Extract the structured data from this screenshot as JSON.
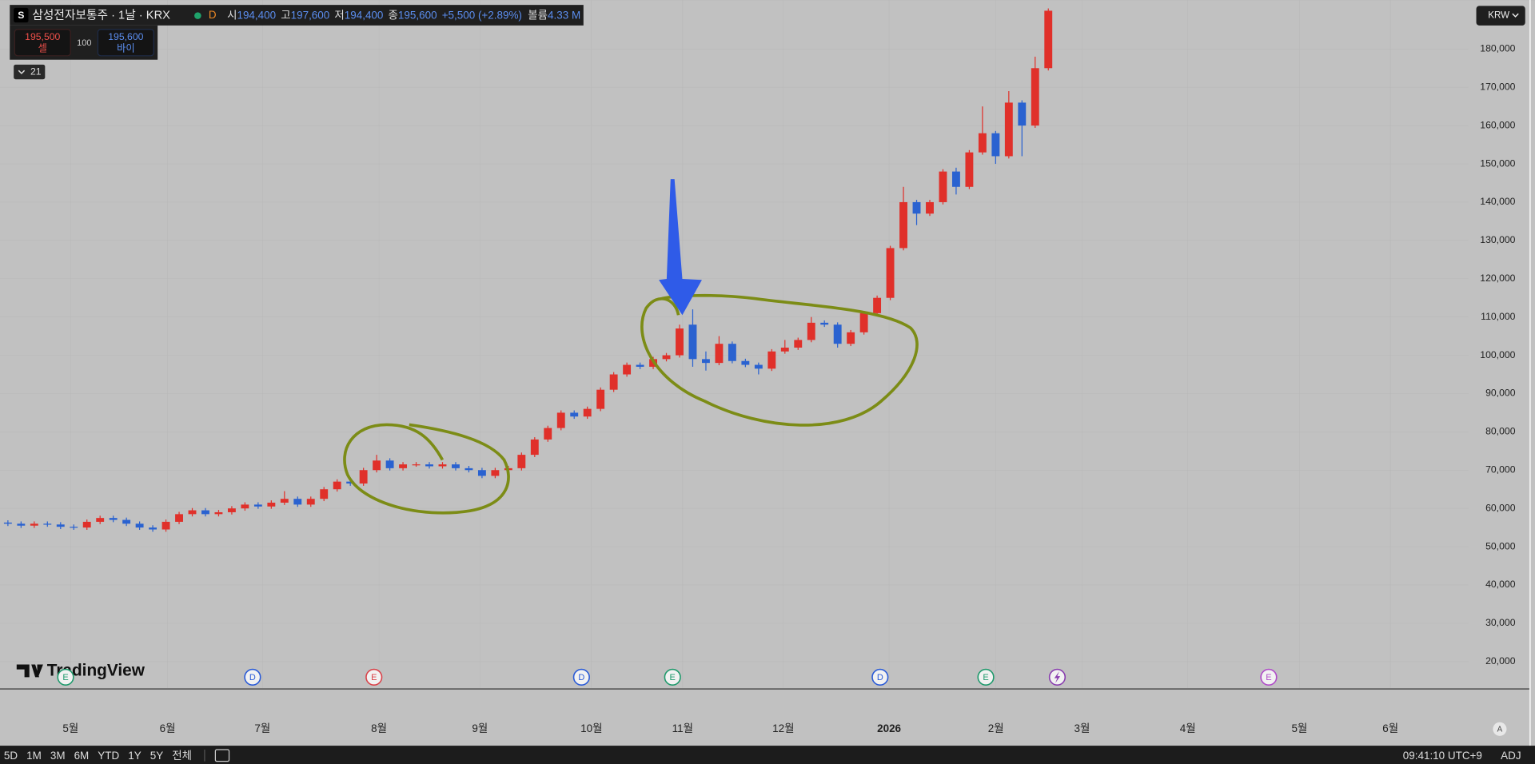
{
  "chart_data": {
    "type": "candlestick",
    "colors": {
      "up": "#e0302a",
      "down": "#2a62d0"
    },
    "ylim": [
      13100,
      192800
    ],
    "yticks": [
      {
        "value": 20000,
        "label": "20,000"
      },
      {
        "value": 30000,
        "label": "30,000"
      },
      {
        "value": 40000,
        "label": "40,000"
      },
      {
        "value": 50000,
        "label": "50,000"
      },
      {
        "value": 60000,
        "label": "60,000"
      },
      {
        "value": 70000,
        "label": "70,000"
      },
      {
        "value": 80000,
        "label": "80,000"
      },
      {
        "value": 90000,
        "label": "90,000"
      },
      {
        "value": 100000,
        "label": "100,000"
      },
      {
        "value": 110000,
        "label": "110,000"
      },
      {
        "value": 120000,
        "label": "120,000"
      },
      {
        "value": 130000,
        "label": "130,000"
      },
      {
        "value": 140000,
        "label": "140,000"
      },
      {
        "value": 150000,
        "label": "150,000"
      },
      {
        "value": 160000,
        "label": "160,000"
      },
      {
        "value": 170000,
        "label": "170,000"
      },
      {
        "value": 180000,
        "label": "180,000"
      }
    ],
    "xlim": [
      -0.6,
      110.9
    ],
    "xticks": [
      {
        "value": 4.76,
        "label": "5월"
      },
      {
        "value": 12.12,
        "label": "6월"
      },
      {
        "value": 19.33,
        "label": "7월"
      },
      {
        "value": 28.18,
        "label": "8월"
      },
      {
        "value": 35.84,
        "label": "9월"
      },
      {
        "value": 44.31,
        "label": "10월"
      },
      {
        "value": 51.23,
        "label": "11월"
      },
      {
        "value": 58.88,
        "label": "12월"
      },
      {
        "value": 66.91,
        "label": "2026"
      },
      {
        "value": 75.02,
        "label": "2월"
      },
      {
        "value": 81.56,
        "label": "3월"
      },
      {
        "value": 89.59,
        "label": "4월"
      },
      {
        "value": 98.07,
        "label": "5월"
      },
      {
        "value": 104.98,
        "label": "6월"
      }
    ],
    "candles": [
      [
        56300,
        56900,
        55400,
        56000
      ],
      [
        56000,
        56600,
        54900,
        55500
      ],
      [
        55500,
        56600,
        54900,
        56000
      ],
      [
        56000,
        56600,
        55200,
        55800
      ],
      [
        55800,
        56400,
        54600,
        55200
      ],
      [
        55200,
        55800,
        54400,
        55000
      ],
      [
        55000,
        57100,
        54400,
        56500
      ],
      [
        56500,
        58100,
        55900,
        57500
      ],
      [
        57500,
        58100,
        56400,
        57000
      ],
      [
        57000,
        57600,
        55400,
        56000
      ],
      [
        56000,
        56600,
        54400,
        55000
      ],
      [
        55000,
        55600,
        53900,
        54500
      ],
      [
        54500,
        57100,
        53900,
        56500
      ],
      [
        56500,
        59100,
        55900,
        58500
      ],
      [
        58500,
        60100,
        57900,
        59500
      ],
      [
        59500,
        60100,
        57900,
        58500
      ],
      [
        58500,
        59600,
        57900,
        59000
      ],
      [
        59000,
        60600,
        58400,
        60000
      ],
      [
        60000,
        61600,
        59400,
        61000
      ],
      [
        61000,
        61600,
        59900,
        60500
      ],
      [
        60500,
        62100,
        59900,
        61500
      ],
      [
        61500,
        64500,
        60900,
        62500
      ],
      [
        62500,
        63100,
        60400,
        61000
      ],
      [
        61000,
        63100,
        60400,
        62500
      ],
      [
        62500,
        65600,
        61900,
        65000
      ],
      [
        65000,
        67600,
        64400,
        67000
      ],
      [
        67000,
        67600,
        65900,
        66500
      ],
      [
        66500,
        70600,
        65900,
        70000
      ],
      [
        70000,
        74000,
        69400,
        72500
      ],
      [
        72500,
        73100,
        69900,
        70500
      ],
      [
        70500,
        72100,
        69900,
        71500
      ],
      [
        71500,
        72100,
        70900,
        71500
      ],
      [
        71500,
        72100,
        70400,
        71000
      ],
      [
        71000,
        72100,
        70400,
        71500
      ],
      [
        71500,
        72100,
        69900,
        70500
      ],
      [
        70500,
        71100,
        69400,
        70000
      ],
      [
        70000,
        70600,
        67900,
        68500
      ],
      [
        68500,
        70600,
        67900,
        70000
      ],
      [
        70000,
        71100,
        69400,
        70500
      ],
      [
        70500,
        74600,
        69900,
        74000
      ],
      [
        74000,
        78600,
        73400,
        78000
      ],
      [
        78000,
        81600,
        77400,
        81000
      ],
      [
        81000,
        85600,
        80400,
        85000
      ],
      [
        85000,
        85600,
        83400,
        84000
      ],
      [
        84000,
        86600,
        83400,
        86000
      ],
      [
        86000,
        91600,
        85400,
        91000
      ],
      [
        91000,
        95600,
        90400,
        95000
      ],
      [
        95000,
        98100,
        94400,
        97500
      ],
      [
        97500,
        98100,
        96400,
        97000
      ],
      [
        97000,
        99600,
        96400,
        99000
      ],
      [
        99000,
        100600,
        98400,
        100000
      ],
      [
        100000,
        108000,
        99400,
        107000
      ],
      [
        108000,
        112000,
        97000,
        99000
      ],
      [
        99000,
        101000,
        96000,
        98000
      ],
      [
        98000,
        105000,
        97400,
        103000
      ],
      [
        103000,
        103600,
        97900,
        98500
      ],
      [
        98500,
        99100,
        96900,
        97500
      ],
      [
        97500,
        98100,
        95000,
        96500
      ],
      [
        96500,
        101600,
        95900,
        101000
      ],
      [
        101000,
        104000,
        100400,
        102000
      ],
      [
        102000,
        104600,
        101400,
        104000
      ],
      [
        104000,
        110000,
        103400,
        108500
      ],
      [
        108500,
        109100,
        107400,
        108000
      ],
      [
        108000,
        108600,
        102000,
        103000
      ],
      [
        103000,
        106600,
        102400,
        106000
      ],
      [
        106000,
        111600,
        105400,
        111000
      ],
      [
        111000,
        115600,
        110400,
        115000
      ],
      [
        115000,
        128600,
        114400,
        128000
      ],
      [
        128000,
        144000,
        127400,
        140000
      ],
      [
        140000,
        140600,
        134000,
        137000
      ],
      [
        137000,
        140600,
        136400,
        140000
      ],
      [
        140000,
        148600,
        139400,
        148000
      ],
      [
        148000,
        149000,
        142000,
        144000
      ],
      [
        144000,
        153600,
        143400,
        153000
      ],
      [
        153000,
        165000,
        152400,
        158000
      ],
      [
        158000,
        158600,
        150000,
        152000
      ],
      [
        152000,
        169000,
        151400,
        166000
      ],
      [
        166000,
        166600,
        152000,
        160000
      ],
      [
        160000,
        178000,
        159400,
        175000
      ],
      [
        175000,
        190600,
        174400,
        190000
      ]
    ]
  },
  "ui": {
    "symbol_icon": "S",
    "symbol": "삼성전자보통주 · 1날 · KRX",
    "d_badge": "D",
    "open_label": "시",
    "open": "194,400",
    "high_label": "고",
    "high": "197,600",
    "low_label": "저",
    "low": "194,400",
    "close_label": "종",
    "close": "195,600",
    "change": "+5,500 (+2.89%)",
    "volume_label": "볼륨",
    "volume": "4.33 M",
    "sell_price": "195,500",
    "sell": "셀",
    "spread": "100",
    "buy_price": "195,600",
    "buy": "바이",
    "indicator_count": "21",
    "currency": "KRW",
    "logo": "TradingView",
    "events": [
      "E",
      "D",
      "E",
      "D",
      "E",
      "D",
      "E",
      "E"
    ],
    "ranges": [
      "5D",
      "1M",
      "3M",
      "6M",
      "YTD",
      "1Y",
      "5Y",
      "전체"
    ],
    "clock": "09:41:10 UTC+9",
    "adj": "ADJ",
    "auto": "A"
  }
}
